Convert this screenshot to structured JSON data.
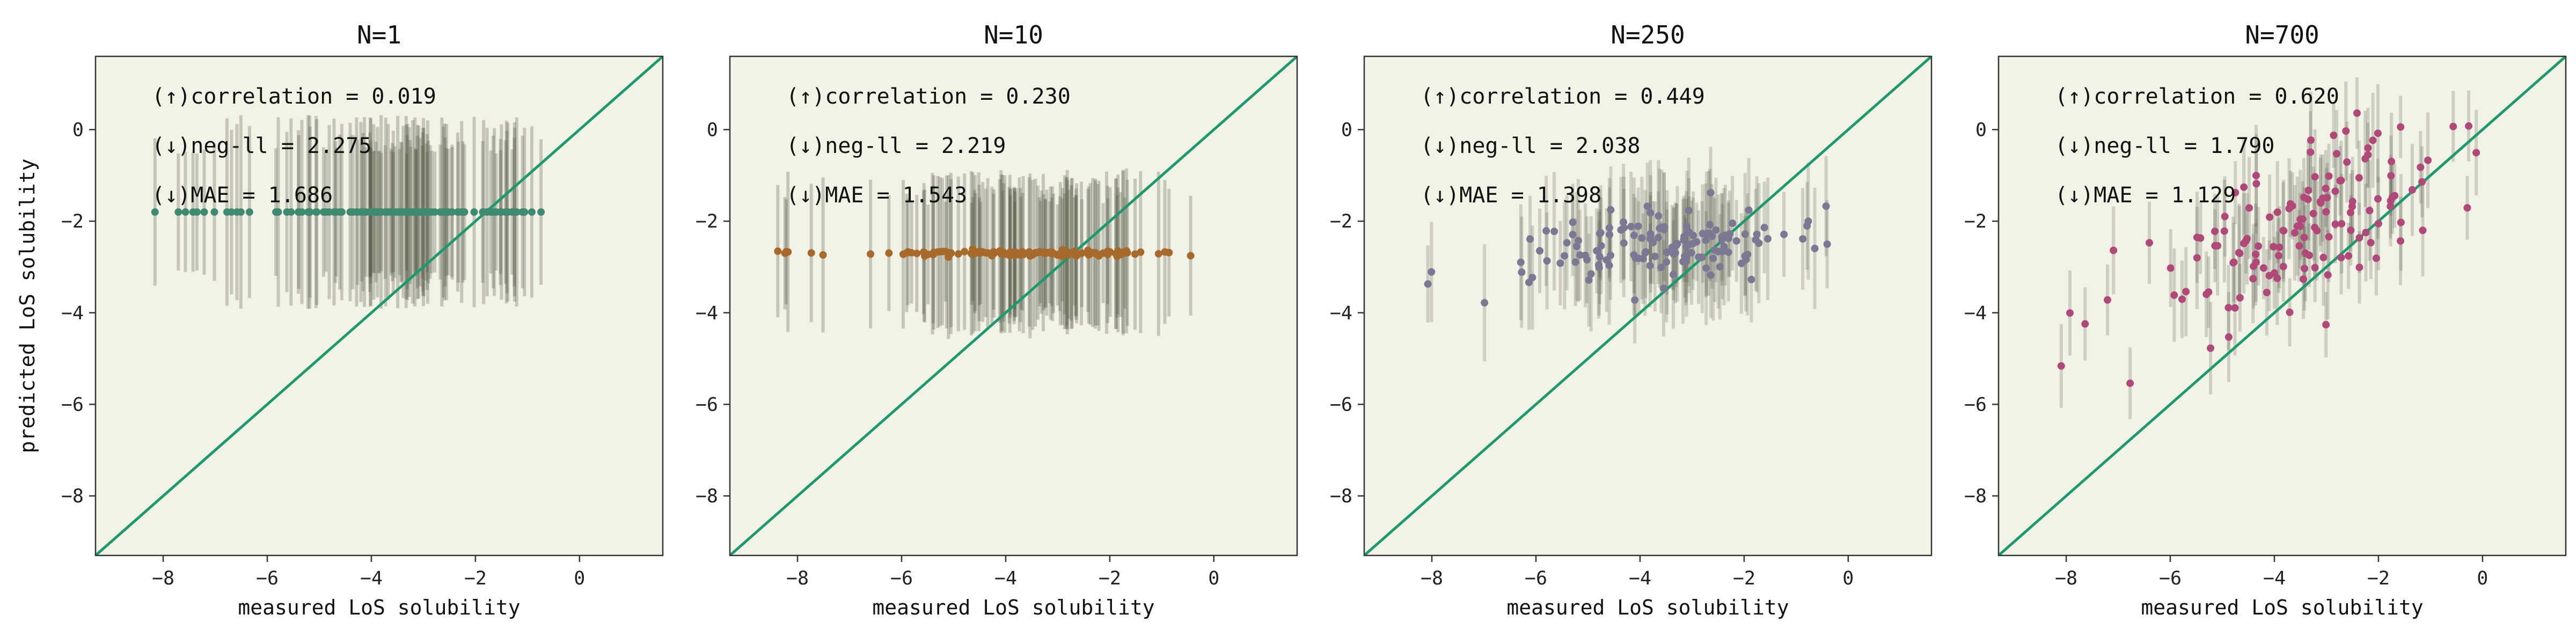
{
  "figure": {
    "background": "#f3f2e6",
    "errorbar_color": "#4f5140",
    "diagonal_color": "#1b9a6e"
  },
  "chart_data": [
    {
      "type": "scatter",
      "title": "N=1",
      "xlabel": "measured LoS solubility",
      "ylabel": "predicted LoS solubility",
      "xlim": [
        -9.3,
        1.6
      ],
      "ylim": [
        -9.3,
        1.6
      ],
      "xticks": [
        -8,
        -6,
        -4,
        -2,
        0
      ],
      "yticks": [
        0,
        -2,
        -4,
        -6,
        -8
      ],
      "point_color": "#3f8a72",
      "metrics": [
        "(↑)correlation = 0.019",
        "(↓)neg-ll = 2.275",
        "(↓)MAE = 1.686"
      ],
      "pattern": "flat",
      "y_center": -1.8,
      "y_half_range": 1.7,
      "n_points": 140,
      "y_noise": 0
    },
    {
      "type": "scatter",
      "title": "N=10",
      "xlabel": "measured LoS solubility",
      "ylabel": "",
      "xlim": [
        -9.3,
        1.6
      ],
      "ylim": [
        -9.3,
        1.6
      ],
      "xticks": [
        -8,
        -6,
        -4,
        -2,
        0
      ],
      "yticks": [
        0,
        -2,
        -4,
        -6,
        -8
      ],
      "point_color": "#a86a2b",
      "metrics": [
        "(↑)correlation = 0.230",
        "(↓)neg-ll = 2.219",
        "(↓)MAE = 1.543"
      ],
      "pattern": "flat",
      "y_center": -2.7,
      "y_half_range": 1.45,
      "n_points": 140,
      "y_noise": 0.03
    },
    {
      "type": "scatter",
      "title": "N=250",
      "xlabel": "measured LoS solubility",
      "ylabel": "",
      "xlim": [
        -9.3,
        1.6
      ],
      "ylim": [
        -9.3,
        1.6
      ],
      "xticks": [
        -8,
        -6,
        -4,
        -2,
        0
      ],
      "yticks": [
        0,
        -2,
        -4,
        -6,
        -8
      ],
      "point_color": "#7b7893",
      "metrics": [
        "(↑)correlation = 0.449",
        "(↓)neg-ll = 2.038",
        "(↓)MAE = 1.398"
      ],
      "pattern": "weak",
      "slope": 0.12,
      "y_intercept": -2.4,
      "y_half_range": 1.1,
      "n_points": 140,
      "y_noise": 0.35
    },
    {
      "type": "scatter",
      "title": "N=700",
      "xlabel": "measured LoS solubility",
      "ylabel": "",
      "xlim": [
        -9.3,
        1.6
      ],
      "ylim": [
        -9.3,
        1.6
      ],
      "xticks": [
        -8,
        -6,
        -4,
        -2,
        0
      ],
      "yticks": [
        0,
        -2,
        -4,
        -6,
        -8
      ],
      "point_color": "#b0487a",
      "metrics": [
        "(↑)correlation = 0.620",
        "(↓)neg-ll = 1.790",
        "(↓)MAE = 1.129"
      ],
      "pattern": "strong",
      "slope": 0.45,
      "y_intercept": -1.6,
      "y_half_range": 0.9,
      "n_points": 140,
      "y_noise": 0.85
    }
  ]
}
